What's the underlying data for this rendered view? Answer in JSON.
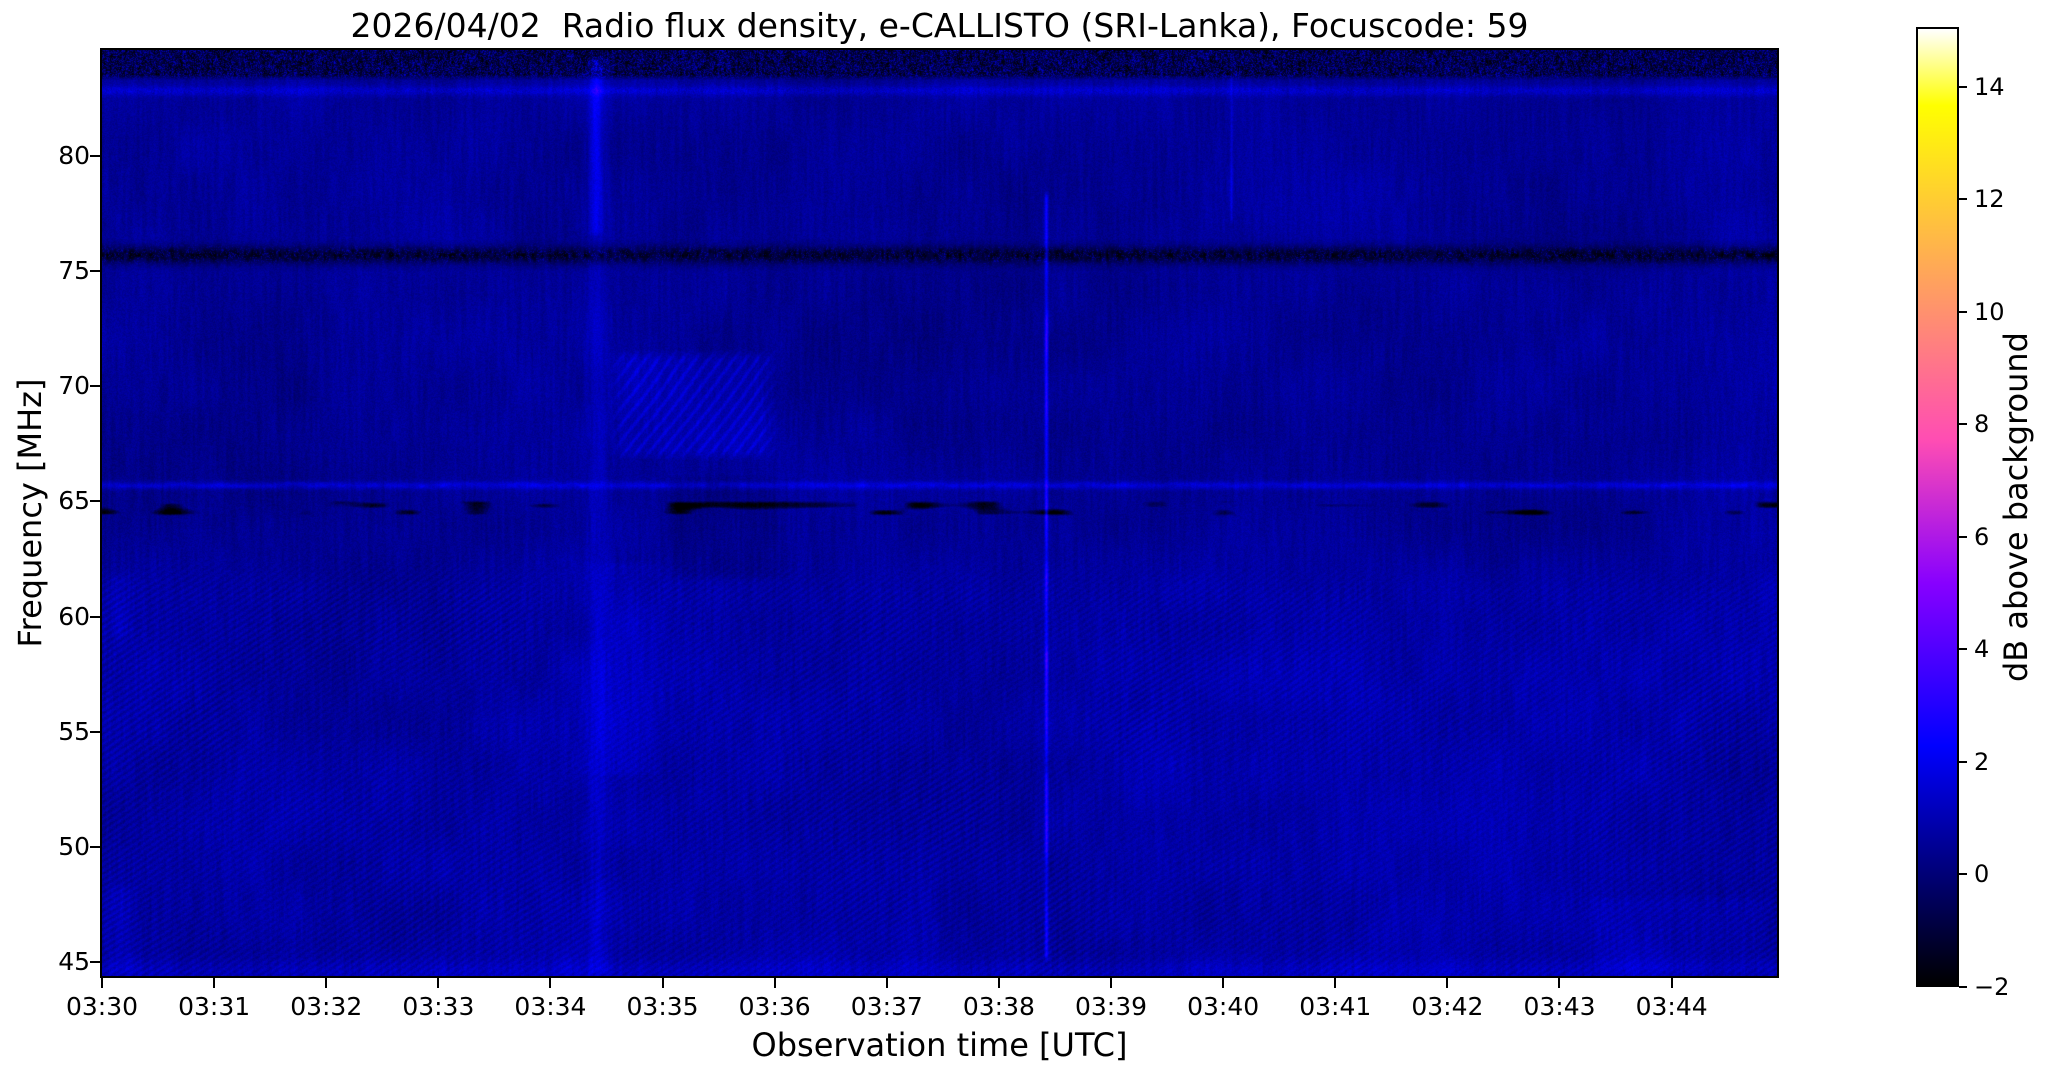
{
  "figure": {
    "background_color": "#ffffff",
    "kind": "e-CALLISTO radio spectrogram"
  },
  "chart_data": {
    "type": "heatmap",
    "subtype": "radio-spectrogram",
    "title": "2026/04/02  Radio flux density, e-CALLISTO (SRI-Lanka), Focuscode: 59",
    "xlabel": "Observation time [UTC]",
    "ylabel": "Frequency [MHz]",
    "grid": false,
    "x_start_label": "03:30",
    "x_tick_labels": [
      "03:30",
      "03:31",
      "03:32",
      "03:33",
      "03:34",
      "03:35",
      "03:36",
      "03:37",
      "03:38",
      "03:39",
      "03:40",
      "03:41",
      "03:42",
      "03:43",
      "03:44"
    ],
    "x_tick_minutes": [
      0,
      1,
      2,
      3,
      4,
      5,
      6,
      7,
      8,
      9,
      10,
      11,
      12,
      13,
      14
    ],
    "x_range_minutes": [
      0,
      14.94
    ],
    "y_tick_values": [
      80,
      75,
      70,
      65,
      60,
      55,
      50,
      45
    ],
    "ylim_mhz": [
      44.4,
      84.6
    ],
    "colorbar": {
      "label": "dB above background",
      "tick_values": [
        14,
        12,
        10,
        8,
        6,
        4,
        2,
        0,
        -2
      ],
      "tick_labels": [
        "14",
        "12",
        "10",
        "8",
        "6",
        "4",
        "2",
        "0",
        "−2"
      ],
      "range_db": [
        -2,
        15.06
      ],
      "colormap": "gnuplot2",
      "gradient_stops": [
        {
          "pos": 0.0,
          "color": "#000000"
        },
        {
          "pos": 0.125,
          "color": "#000080"
        },
        {
          "pos": 0.25,
          "color": "#0000ff"
        },
        {
          "pos": 0.32,
          "color": "#3800ff"
        },
        {
          "pos": 0.42,
          "color": "#8700ff"
        },
        {
          "pos": 0.5,
          "color": "#c729d6"
        },
        {
          "pos": 0.57,
          "color": "#ff4db3"
        },
        {
          "pos": 0.64,
          "color": "#ff708f"
        },
        {
          "pos": 0.7,
          "color": "#ff8f70"
        },
        {
          "pos": 0.78,
          "color": "#ffb847"
        },
        {
          "pos": 0.84,
          "color": "#ffd629"
        },
        {
          "pos": 0.92,
          "color": "#ffff00"
        },
        {
          "pos": 1.0,
          "color": "#ffffff"
        }
      ]
    },
    "background_texture": {
      "base_db_upper": 0.5,
      "base_db_lower": 0.75,
      "split_freq_mhz": 62.5,
      "mottle_db": 0.5,
      "column_striation_db": 0.45,
      "pixel_noise_db": 0.6,
      "ripple_amp_db": 0.3,
      "ripple_fade_freq_mhz": 63
    },
    "horizontal_features": [
      {
        "name": "top-noise-band",
        "f_lo": 83.3,
        "f_hi": 84.6,
        "level_db": -1.5,
        "speckle_db": 2.6
      },
      {
        "name": "bright-line-82.9MHz",
        "f_center": 82.85,
        "sigma_mhz": 0.22,
        "amp_db": 0.9
      },
      {
        "name": "rfi-dark-band-75.7MHz",
        "f_center": 75.72,
        "sigma_mhz": 0.38,
        "level_db": -0.6,
        "speckle_db": 1.8
      },
      {
        "name": "bright-line-65.7MHz",
        "f_center": 65.72,
        "sigma_mhz": 0.16,
        "amp_db": 1.15
      },
      {
        "name": "dark-dashes-64.7MHz",
        "f_lo": 64.4,
        "f_hi": 65.05,
        "depth_db": 1.3,
        "coverage": 0.38
      },
      {
        "name": "bright-bottom-rows",
        "f_center": 44.6,
        "sigma_mhz": 0.5,
        "amp_db": 0.45
      }
    ],
    "vertical_features": [
      {
        "name": "diffuse-band-03:34.4",
        "t_min": 4.42,
        "sigma_min": 0.09,
        "amp_db": 0.55,
        "f_lo": 44.4,
        "f_hi": 84.6,
        "modulated": false
      },
      {
        "name": "bright-streak-top-03:34.4",
        "t_min": 4.4,
        "sigma_min": 0.05,
        "amp_db": 1.0,
        "f_lo": 76.5,
        "f_hi": 84.4,
        "modulated": false
      },
      {
        "name": "wide-band-03:34.7",
        "t_min": 4.65,
        "sigma_min": 0.3,
        "amp_db": 0.35,
        "f_lo": 53.0,
        "f_hi": 62.5,
        "modulated": false
      },
      {
        "name": "narrow-streak-03:38.4",
        "t_min": 8.42,
        "sigma_min": 0.016,
        "amp_db": 2.4,
        "f_lo": 45.0,
        "f_hi": 78.5,
        "modulated": true
      },
      {
        "name": "faint-line-03:40.1",
        "t_min": 10.07,
        "sigma_min": 0.012,
        "amp_db": 0.9,
        "f_lo": 77.0,
        "f_hi": 84.3,
        "modulated": true
      }
    ],
    "patches": [
      {
        "name": "bright-patch-68-71MHz",
        "t_lo": 4.5,
        "t_hi": 6.05,
        "f_lo": 66.8,
        "f_hi": 71.6,
        "amp_db": 0.8,
        "striped": true
      },
      {
        "name": "dim-patch-62-66MHz",
        "t_lo": 4.95,
        "t_hi": 6.15,
        "f_lo": 61.5,
        "f_hi": 66.2,
        "amp_db": -0.35,
        "striped": false
      },
      {
        "name": "bright-corner-bottom-right",
        "t_lo": 13.2,
        "t_hi": 14.94,
        "f_lo": 44.4,
        "f_hi": 48.0,
        "amp_db": 0.3,
        "striped": false
      },
      {
        "name": "bright-corner-bottom-left",
        "t_lo": 0.0,
        "t_hi": 0.35,
        "f_lo": 44.4,
        "f_hi": 48.5,
        "amp_db": 0.45,
        "striped": false
      },
      {
        "name": "bright-left-edge-60MHz",
        "t_lo": 0.0,
        "t_hi": 0.3,
        "f_lo": 59.0,
        "f_hi": 62.0,
        "amp_db": 0.4,
        "striped": false
      }
    ]
  }
}
